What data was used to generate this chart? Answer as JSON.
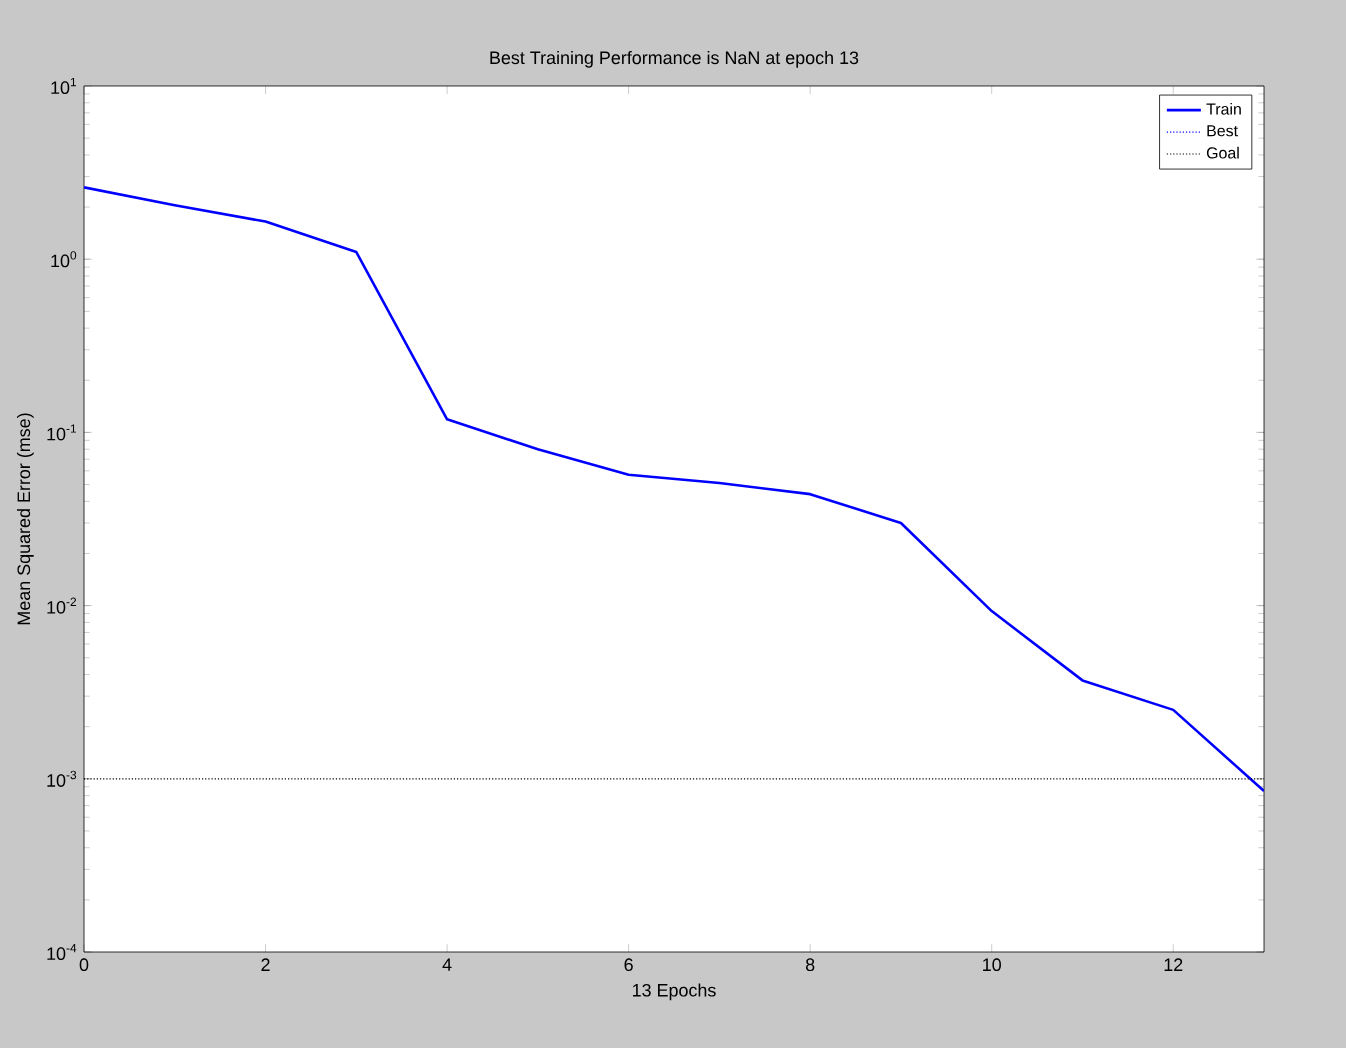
{
  "chart_data": {
    "type": "line",
    "title": "Best Training Performance is NaN at epoch 13",
    "xlabel": "13 Epochs",
    "ylabel": "Mean Squared Error  (mse)",
    "log": "y",
    "xlim": [
      0,
      13
    ],
    "xticks": [
      0,
      2,
      4,
      6,
      8,
      10,
      12
    ],
    "ylim": [
      0.0001,
      10
    ],
    "yticks": [
      {
        "value": 0.0001,
        "label": "10$^{-4}$"
      },
      {
        "value": 0.001,
        "label": "10$^{-3}$"
      },
      {
        "value": 0.01,
        "label": "10$^{-2}$"
      },
      {
        "value": 0.1,
        "label": "10$^{-1}$"
      },
      {
        "value": 1,
        "label": "10$^{0}$"
      },
      {
        "value": 10,
        "label": "10$^{1}$"
      }
    ],
    "legend": "top right",
    "grid": false,
    "series": [
      {
        "name": "Train",
        "color": "#0000ff",
        "line_style": "solid",
        "x": [
          0,
          1,
          2,
          3,
          4,
          5,
          6,
          7,
          8,
          9,
          10,
          11,
          12,
          13
        ],
        "values": [
          2.6,
          2.05,
          1.65,
          1.1,
          0.119,
          0.08,
          0.057,
          0.051,
          0.044,
          0.03,
          0.0093,
          0.0037,
          0.0025,
          0.00085
        ]
      },
      {
        "name": "Best",
        "color": "#0000ff",
        "line_style": "dotted",
        "values": [
          null
        ]
      },
      {
        "name": "Goal",
        "color": "#000000",
        "line_style": "dotted",
        "x": [
          0,
          13
        ],
        "values": [
          0.001,
          0.001
        ]
      }
    ]
  }
}
